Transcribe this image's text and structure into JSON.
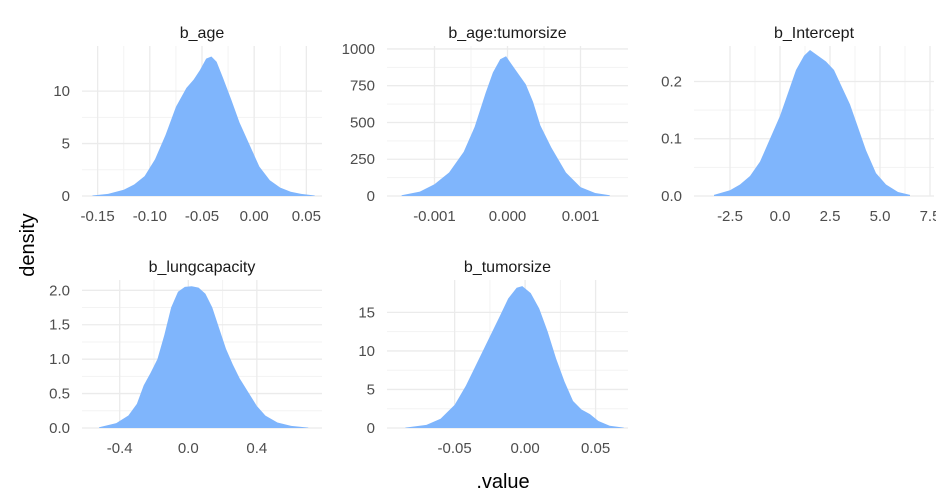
{
  "chart_data": {
    "type": "area",
    "kind": "faceted density plot",
    "xlabel": ".value",
    "ylabel": "density",
    "fill_color": "#7FB5FC",
    "grid": true,
    "grid_color": "#EBEBEB",
    "facets": [
      {
        "title": "b_age",
        "xlim": [
          -0.165,
          0.065
        ],
        "ylim": [
          0,
          14.3
        ],
        "xticks": [
          -0.15,
          -0.1,
          -0.05,
          0.0,
          0.05
        ],
        "xtick_labels": [
          "-0.15",
          "-0.10",
          "-0.05",
          "0.00",
          "0.05"
        ],
        "yticks": [
          0,
          5,
          10
        ],
        "ytick_labels": [
          "0",
          "5",
          "10"
        ],
        "x": [
          -0.155,
          -0.14,
          -0.125,
          -0.115,
          -0.105,
          -0.095,
          -0.085,
          -0.075,
          -0.065,
          -0.058,
          -0.052,
          -0.046,
          -0.041,
          -0.036,
          -0.03,
          -0.022,
          -0.014,
          -0.005,
          0.005,
          0.015,
          0.025,
          0.035,
          0.045,
          0.058
        ],
        "y": [
          0.05,
          0.2,
          0.6,
          1.1,
          1.9,
          3.5,
          5.8,
          8.5,
          10.3,
          11.1,
          12.0,
          13.1,
          13.3,
          12.8,
          11.3,
          9.2,
          7.0,
          5.0,
          2.8,
          1.5,
          0.8,
          0.4,
          0.2,
          0.05
        ]
      },
      {
        "title": "b_age:tumorsize",
        "xlim": [
          -0.00165,
          0.00165
        ],
        "ylim": [
          0,
          1020
        ],
        "xticks": [
          -0.001,
          0.0,
          0.001
        ],
        "xtick_labels": [
          "-0.001",
          "0.000",
          "0.001"
        ],
        "yticks": [
          0,
          250,
          500,
          750,
          1000
        ],
        "ytick_labels": [
          "0",
          "250",
          "500",
          "750",
          "1000"
        ],
        "x": [
          -0.00145,
          -0.0012,
          -0.001,
          -0.0008,
          -0.0006,
          -0.00045,
          -0.0003,
          -0.0002,
          -0.0001,
          -2e-05,
          5e-05,
          0.00015,
          0.00025,
          0.00035,
          0.00045,
          0.0006,
          0.0008,
          0.001,
          0.0012,
          0.0014
        ],
        "y": [
          5,
          30,
          80,
          160,
          300,
          470,
          700,
          840,
          930,
          950,
          900,
          830,
          760,
          640,
          480,
          330,
          160,
          60,
          20,
          5
        ]
      },
      {
        "title": "b_Intercept",
        "xlim": [
          -4.3,
          7.7
        ],
        "ylim": [
          0,
          0.262
        ],
        "xticks": [
          -2.5,
          0.0,
          2.5,
          5.0,
          7.5
        ],
        "xtick_labels": [
          "-2.5",
          "0.0",
          "2.5",
          "5.0",
          "7.5"
        ],
        "yticks": [
          0.0,
          0.1,
          0.2
        ],
        "ytick_labels": [
          "0.0",
          "0.1",
          "0.2"
        ],
        "x": [
          -3.3,
          -2.5,
          -2.0,
          -1.5,
          -1.0,
          -0.5,
          0.0,
          0.4,
          0.8,
          1.2,
          1.5,
          1.9,
          2.3,
          2.7,
          3.1,
          3.5,
          3.9,
          4.3,
          4.8,
          5.3,
          5.9,
          6.5
        ],
        "y": [
          0.002,
          0.01,
          0.02,
          0.035,
          0.06,
          0.1,
          0.14,
          0.18,
          0.22,
          0.245,
          0.255,
          0.245,
          0.235,
          0.22,
          0.19,
          0.16,
          0.12,
          0.08,
          0.04,
          0.02,
          0.007,
          0.002
        ]
      },
      {
        "title": "b_lungcapacity",
        "xlim": [
          -0.62,
          0.78
        ],
        "ylim": [
          0,
          2.15
        ],
        "xticks": [
          -0.4,
          0.0,
          0.4
        ],
        "xtick_labels": [
          "-0.4",
          "0.0",
          "0.4"
        ],
        "yticks": [
          0.0,
          0.5,
          1.0,
          1.5,
          2.0
        ],
        "ytick_labels": [
          "0.0",
          "0.5",
          "1.0",
          "1.5",
          "2.0"
        ],
        "x": [
          -0.52,
          -0.42,
          -0.35,
          -0.3,
          -0.26,
          -0.22,
          -0.18,
          -0.14,
          -0.1,
          -0.06,
          -0.02,
          0.02,
          0.06,
          0.1,
          0.14,
          0.18,
          0.22,
          0.26,
          0.3,
          0.35,
          0.4,
          0.45,
          0.52,
          0.6,
          0.7
        ],
        "y": [
          0.01,
          0.07,
          0.18,
          0.35,
          0.62,
          0.8,
          1.0,
          1.35,
          1.75,
          1.98,
          2.05,
          2.06,
          2.04,
          1.95,
          1.75,
          1.45,
          1.15,
          0.92,
          0.72,
          0.52,
          0.32,
          0.18,
          0.08,
          0.03,
          0.005
        ]
      },
      {
        "title": "b_tumorsize",
        "xlim": [
          -0.098,
          0.073
        ],
        "ylim": [
          0,
          19.2
        ],
        "xticks": [
          -0.05,
          0.0,
          0.05
        ],
        "xtick_labels": [
          "-0.05",
          "0.00",
          "0.05"
        ],
        "yticks": [
          0,
          5,
          10,
          15
        ],
        "ytick_labels": [
          "0",
          "5",
          "10",
          "15"
        ],
        "x": [
          -0.085,
          -0.07,
          -0.06,
          -0.05,
          -0.042,
          -0.034,
          -0.026,
          -0.018,
          -0.012,
          -0.006,
          -0.002,
          0.004,
          0.01,
          0.016,
          0.022,
          0.028,
          0.034,
          0.04,
          0.046,
          0.052,
          0.06,
          0.07
        ],
        "y": [
          0.05,
          0.4,
          1.2,
          3.0,
          5.5,
          8.5,
          11.5,
          14.5,
          16.8,
          18.2,
          18.4,
          17.5,
          15.5,
          12.5,
          9.0,
          6.0,
          3.5,
          2.4,
          1.8,
          0.9,
          0.3,
          0.05
        ]
      }
    ]
  }
}
